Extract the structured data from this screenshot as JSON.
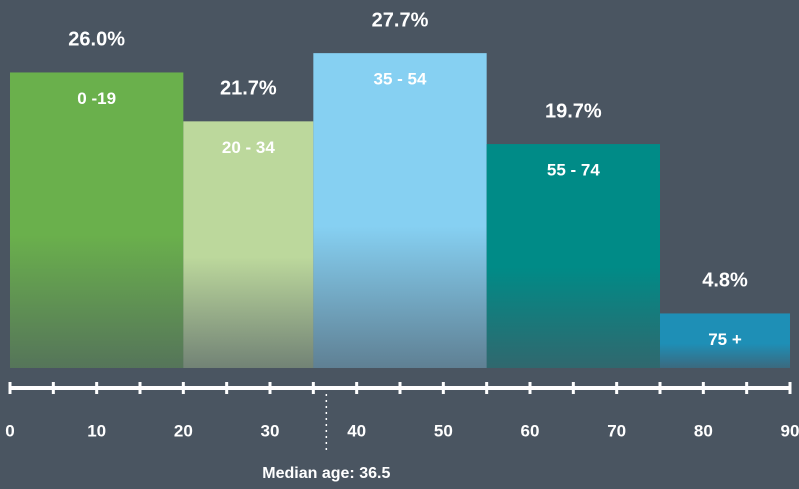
{
  "chart_data": {
    "type": "histogram",
    "bins": [
      0,
      20,
      35,
      55,
      75,
      90
    ],
    "categories": [
      "0 -19",
      "20 - 34",
      "35 - 54",
      "55 - 74",
      "75 +"
    ],
    "values": [
      26.0,
      21.7,
      27.7,
      19.7,
      4.8
    ],
    "value_labels": [
      "26.0%",
      "21.7%",
      "27.7%",
      "19.7%",
      "4.8%"
    ],
    "colors": [
      "#6ab04c",
      "#bcd89c",
      "#86d0f2",
      "#008b87",
      "#1e8fb6"
    ],
    "xlim": [
      0,
      90
    ],
    "xticks": [
      0,
      10,
      20,
      30,
      40,
      50,
      60,
      70,
      80,
      90
    ],
    "xminorticks": [
      5,
      15,
      25,
      35,
      45,
      55,
      65,
      75,
      85
    ],
    "ylim": [
      0,
      30
    ],
    "median": 36.5,
    "annotation": "Median age: 36.5"
  }
}
